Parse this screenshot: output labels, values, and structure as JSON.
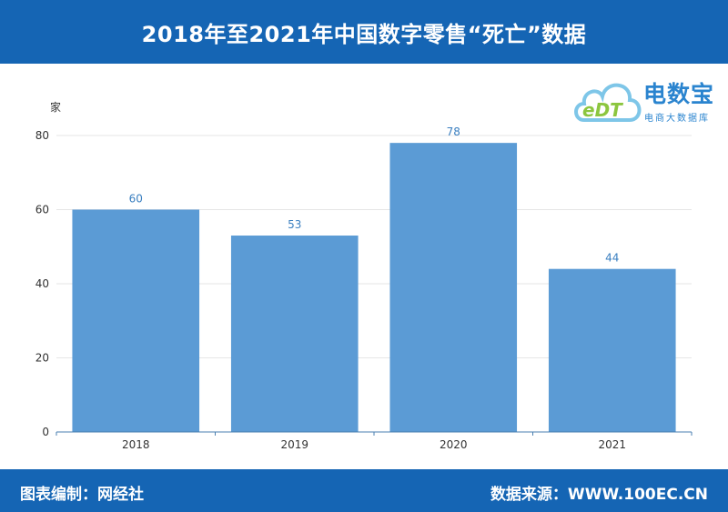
{
  "header": {
    "title": "2018年至2021年中国数字零售“死亡”数据"
  },
  "logo": {
    "brand": "电数宝",
    "brand_sub": "电商大数据库",
    "badge": "eDT"
  },
  "footer": {
    "compiler": "图表编制：网经社",
    "source": "数据来源：WWW.100EC.CN"
  },
  "colors": {
    "bar": "#5b9bd5",
    "header_bg": "#1565b4",
    "data_label": "#3a7fc0"
  },
  "chart_data": {
    "type": "bar",
    "categories": [
      "2018",
      "2019",
      "2020",
      "2021"
    ],
    "values": [
      60,
      53,
      78,
      44
    ],
    "title": "",
    "xlabel": "",
    "ylabel": "家",
    "ylim": [
      0,
      80
    ],
    "yticks": [
      0,
      20,
      40,
      60,
      80
    ],
    "grid": true,
    "data_labels": true
  }
}
